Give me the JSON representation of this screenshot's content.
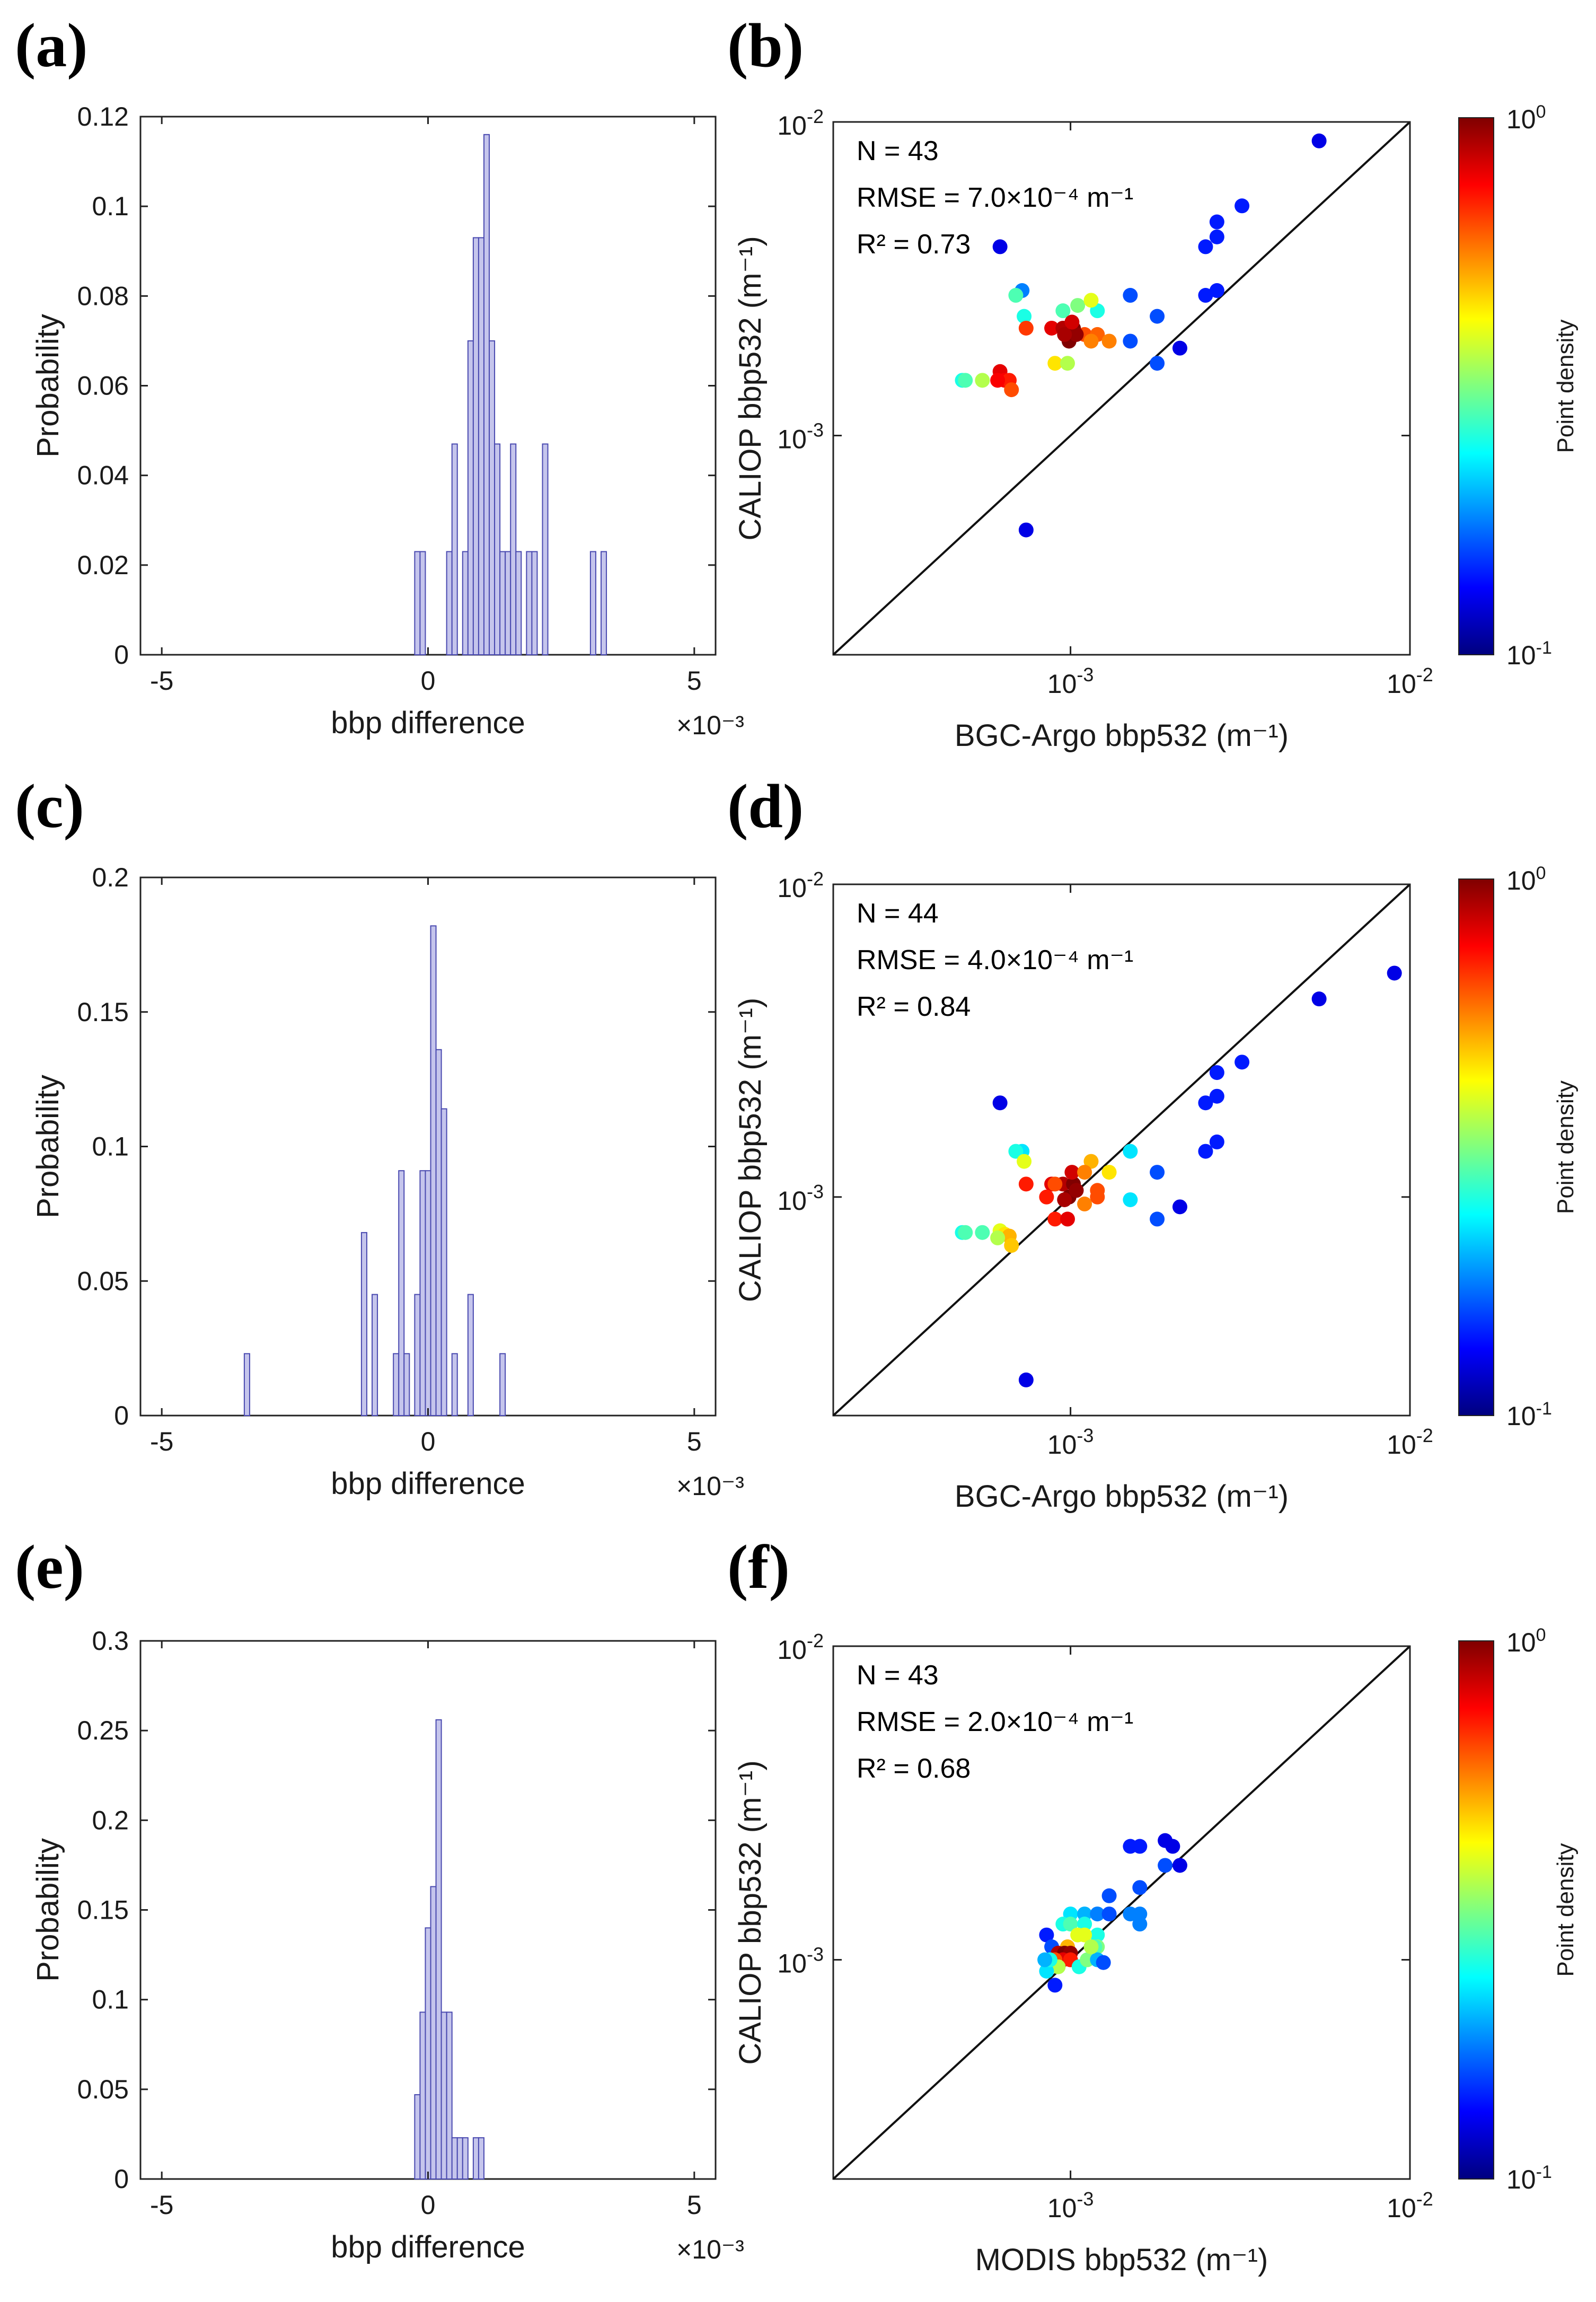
{
  "panels": [
    "(a)",
    "(b)",
    "(c)",
    "(d)",
    "(e)",
    "(f)"
  ],
  "chart_data": [
    {
      "panel": "(a)",
      "type": "bar",
      "xlabel": "bbp difference",
      "xscale_note": "×10⁻³",
      "ylabel": "Probability",
      "xlim": [
        -5.4,
        5.4
      ],
      "ylim": [
        0,
        0.12
      ],
      "xticks": [
        "-5",
        "0",
        "5"
      ],
      "yticks": [
        "0",
        "0.02",
        "0.04",
        "0.06",
        "0.08",
        "0.1",
        "0.12"
      ],
      "bin_width": 0.1,
      "x": [
        -0.2,
        -0.1,
        0.4,
        0.5,
        0.7,
        0.8,
        0.9,
        1.0,
        1.1,
        1.2,
        1.3,
        1.4,
        1.5,
        1.6,
        1.7,
        1.9,
        2.0,
        2.2,
        3.1,
        3.3
      ],
      "values": [
        0.023,
        0.023,
        0.023,
        0.047,
        0.023,
        0.07,
        0.093,
        0.093,
        0.116,
        0.07,
        0.047,
        0.023,
        0.023,
        0.047,
        0.023,
        0.023,
        0.023,
        0.047,
        0.023,
        0.023
      ]
    },
    {
      "panel": "(b)",
      "type": "scatter",
      "xscale": "log",
      "yscale": "log",
      "xlim": [
        0.0002,
        0.01
      ],
      "ylim": [
        0.0002,
        0.01
      ],
      "xlabel": "BGC-Argo bbp532 (m⁻¹)",
      "ylabel": "CALIOP bbp532 (m⁻¹)",
      "xtick_base": [
        "10",
        "10"
      ],
      "xtick_exp": [
        "-3",
        "-2"
      ],
      "ytick_base": [
        "10",
        "10"
      ],
      "ytick_exp": [
        "-3",
        "-2"
      ],
      "annotations": [
        "N = 43",
        "RMSE = 7.0×10⁻⁴ m⁻¹",
        "R² = 0.73"
      ],
      "colorbar": {
        "label": "Point density",
        "range": [
          0.1,
          1
        ],
        "tick_base": [
          "10",
          "10"
        ],
        "tick_exp": [
          "0",
          "-1"
        ]
      },
      "points": [
        [
          0.00062,
          0.004,
          0.1
        ],
        [
          0.00074,
          0.0005,
          0.1
        ],
        [
          0.0054,
          0.0087,
          0.1
        ],
        [
          0.0032,
          0.0054,
          0.15
        ],
        [
          0.0027,
          0.0048,
          0.15
        ],
        [
          0.0027,
          0.0043,
          0.15
        ],
        [
          0.0025,
          0.004,
          0.15
        ],
        [
          0.0027,
          0.0029,
          0.15
        ],
        [
          0.0025,
          0.0028,
          0.15
        ],
        [
          0.0015,
          0.0028,
          0.2
        ],
        [
          0.0018,
          0.0024,
          0.2
        ],
        [
          0.0015,
          0.002,
          0.2
        ],
        [
          0.0021,
          0.0019,
          0.1
        ],
        [
          0.0018,
          0.0017,
          0.2
        ],
        [
          0.00072,
          0.0029,
          0.25
        ],
        [
          0.00069,
          0.0028,
          0.45
        ],
        [
          0.00073,
          0.0024,
          0.4
        ],
        [
          0.00105,
          0.0026,
          0.5
        ],
        [
          0.0012,
          0.0025,
          0.4
        ],
        [
          0.00115,
          0.0027,
          0.6
        ],
        [
          0.00095,
          0.0025,
          0.45
        ],
        [
          0.0011,
          0.0021,
          0.8
        ],
        [
          0.0012,
          0.0021,
          0.78
        ],
        [
          0.0009,
          0.0017,
          0.65
        ],
        [
          0.00098,
          0.0017,
          0.55
        ],
        [
          0.00115,
          0.002,
          0.75
        ],
        [
          0.00088,
          0.0022,
          0.9
        ],
        [
          0.00095,
          0.0022,
          0.95
        ],
        [
          0.00102,
          0.0022,
          1.0
        ],
        [
          0.00099,
          0.002,
          1.0
        ],
        [
          0.00104,
          0.0021,
          0.98
        ],
        [
          0.00096,
          0.0021,
          0.96
        ],
        [
          0.00101,
          0.0023,
          0.92
        ],
        [
          0.00074,
          0.0022,
          0.82
        ],
        [
          0.00048,
          0.0015,
          0.4
        ],
        [
          0.00049,
          0.0015,
          0.45
        ],
        [
          0.00055,
          0.0015,
          0.55
        ],
        [
          0.00062,
          0.0016,
          0.9
        ],
        [
          0.00064,
          0.0015,
          0.88
        ],
        [
          0.00066,
          0.0015,
          0.85
        ],
        [
          0.00067,
          0.0014,
          0.8
        ],
        [
          0.00061,
          0.0015,
          0.88
        ],
        [
          0.0013,
          0.002,
          0.75
        ]
      ]
    },
    {
      "panel": "(c)",
      "type": "bar",
      "xlabel": "bbp difference",
      "xscale_note": "×10⁻³",
      "ylabel": "Probability",
      "xlim": [
        -5.4,
        5.4
      ],
      "ylim": [
        0,
        0.2
      ],
      "xticks": [
        "-5",
        "0",
        "5"
      ],
      "yticks": [
        "0",
        "0.05",
        "0.1",
        "0.15",
        "0.2"
      ],
      "bin_width": 0.1,
      "x": [
        -3.4,
        -1.2,
        -1.0,
        -0.6,
        -0.5,
        -0.4,
        -0.2,
        -0.1,
        0.0,
        0.1,
        0.2,
        0.3,
        0.5,
        0.8,
        1.4
      ],
      "values": [
        0.023,
        0.068,
        0.045,
        0.023,
        0.091,
        0.023,
        0.045,
        0.091,
        0.091,
        0.182,
        0.136,
        0.114,
        0.023,
        0.045,
        0.023
      ]
    },
    {
      "panel": "(d)",
      "type": "scatter",
      "xscale": "log",
      "yscale": "log",
      "xlim": [
        0.0002,
        0.01
      ],
      "ylim": [
        0.0002,
        0.01
      ],
      "xlabel": "BGC-Argo bbp532 (m⁻¹)",
      "ylabel": "CALIOP bbp532 (m⁻¹)",
      "xtick_base": [
        "10",
        "10"
      ],
      "xtick_exp": [
        "-3",
        "-2"
      ],
      "ytick_base": [
        "10",
        "10"
      ],
      "ytick_exp": [
        "-3",
        "-2"
      ],
      "annotations": [
        "N = 44",
        "RMSE = 4.0×10⁻⁴ m⁻¹",
        "R² = 0.84"
      ],
      "colorbar": {
        "label": "Point density",
        "range": [
          0.1,
          1
        ],
        "tick_base": [
          "10",
          "10"
        ],
        "tick_exp": [
          "0",
          "-1"
        ]
      },
      "points": [
        [
          0.00062,
          0.002,
          0.1
        ],
        [
          0.00074,
          0.00026,
          0.1
        ],
        [
          0.009,
          0.0052,
          0.1
        ],
        [
          0.0054,
          0.0043,
          0.1
        ],
        [
          0.0032,
          0.0027,
          0.15
        ],
        [
          0.0027,
          0.0025,
          0.15
        ],
        [
          0.0027,
          0.0021,
          0.15
        ],
        [
          0.0025,
          0.002,
          0.15
        ],
        [
          0.0027,
          0.0015,
          0.15
        ],
        [
          0.0025,
          0.0014,
          0.15
        ],
        [
          0.0015,
          0.0014,
          0.35
        ],
        [
          0.0018,
          0.0012,
          0.2
        ],
        [
          0.0015,
          0.00098,
          0.35
        ],
        [
          0.0021,
          0.00093,
          0.1
        ],
        [
          0.0018,
          0.00085,
          0.2
        ],
        [
          0.00072,
          0.0014,
          0.35
        ],
        [
          0.00069,
          0.0014,
          0.4
        ],
        [
          0.00073,
          0.0013,
          0.6
        ],
        [
          0.00115,
          0.0013,
          0.7
        ],
        [
          0.0013,
          0.0012,
          0.65
        ],
        [
          0.0012,
          0.001,
          0.8
        ],
        [
          0.0012,
          0.00105,
          0.8
        ],
        [
          0.0009,
          0.00085,
          0.85
        ],
        [
          0.00098,
          0.00085,
          0.9
        ],
        [
          0.00088,
          0.0011,
          0.9
        ],
        [
          0.00095,
          0.0011,
          0.95
        ],
        [
          0.00102,
          0.0011,
          1.0
        ],
        [
          0.00099,
          0.001,
          1.0
        ],
        [
          0.00104,
          0.00105,
          0.98
        ],
        [
          0.00096,
          0.00098,
          0.96
        ],
        [
          0.00101,
          0.0012,
          0.92
        ],
        [
          0.00074,
          0.0011,
          0.85
        ],
        [
          0.00048,
          0.00077,
          0.4
        ],
        [
          0.00049,
          0.00077,
          0.45
        ],
        [
          0.00055,
          0.00077,
          0.45
        ],
        [
          0.00062,
          0.00078,
          0.6
        ],
        [
          0.00064,
          0.00076,
          0.65
        ],
        [
          0.00066,
          0.00075,
          0.7
        ],
        [
          0.00067,
          0.0007,
          0.68
        ],
        [
          0.00061,
          0.00074,
          0.55
        ],
        [
          0.0011,
          0.00095,
          0.75
        ],
        [
          0.0011,
          0.0012,
          0.75
        ],
        [
          0.0009,
          0.0011,
          0.8
        ],
        [
          0.00085,
          0.001,
          0.85
        ]
      ]
    },
    {
      "panel": "(e)",
      "type": "bar",
      "xlabel": "bbp difference",
      "xscale_note": "×10⁻³",
      "ylabel": "Probability",
      "xlim": [
        -5.4,
        5.4
      ],
      "ylim": [
        0,
        0.3
      ],
      "xticks": [
        "-5",
        "0",
        "5"
      ],
      "yticks": [
        "0",
        "0.05",
        "0.1",
        "0.15",
        "0.2",
        "0.25",
        "0.3"
      ],
      "bin_width": 0.1,
      "x": [
        -0.2,
        -0.1,
        0.0,
        0.1,
        0.2,
        0.3,
        0.4,
        0.5,
        0.6,
        0.7,
        0.8,
        0.9,
        1.0
      ],
      "values": [
        0.047,
        0.093,
        0.14,
        0.163,
        0.256,
        0.093,
        0.093,
        0.023,
        0.023,
        0.023,
        0.0,
        0.023,
        0.023
      ]
    },
    {
      "panel": "(f)",
      "type": "scatter",
      "xscale": "log",
      "yscale": "log",
      "xlim": [
        0.0002,
        0.01
      ],
      "ylim": [
        0.0002,
        0.01
      ],
      "xlabel": "MODIS bbp532 (m⁻¹)",
      "ylabel": "CALIOP bbp532 (m⁻¹)",
      "xtick_base": [
        "10",
        "10"
      ],
      "xtick_exp": [
        "-3",
        "-2"
      ],
      "ytick_base": [
        "10",
        "10"
      ],
      "ytick_exp": [
        "-3",
        "-2"
      ],
      "annotations": [
        "N = 43",
        "RMSE = 2.0×10⁻⁴ m⁻¹",
        "R² = 0.68"
      ],
      "colorbar": {
        "label": "Point density",
        "range": [
          0.1,
          1
        ],
        "tick_base": [
          "10",
          "10"
        ],
        "tick_exp": [
          "0",
          "-1"
        ]
      },
      "points": [
        [
          0.0019,
          0.0024,
          0.1
        ],
        [
          0.002,
          0.0023,
          0.1
        ],
        [
          0.0015,
          0.0023,
          0.15
        ],
        [
          0.0016,
          0.0023,
          0.15
        ],
        [
          0.0021,
          0.002,
          0.1
        ],
        [
          0.0019,
          0.002,
          0.2
        ],
        [
          0.0013,
          0.0016,
          0.2
        ],
        [
          0.0016,
          0.0017,
          0.2
        ],
        [
          0.0015,
          0.0014,
          0.25
        ],
        [
          0.0016,
          0.0014,
          0.25
        ],
        [
          0.0016,
          0.0013,
          0.25
        ],
        [
          0.001,
          0.0014,
          0.35
        ],
        [
          0.0011,
          0.0014,
          0.3
        ],
        [
          0.0012,
          0.0014,
          0.25
        ],
        [
          0.0013,
          0.0014,
          0.2
        ],
        [
          0.00095,
          0.0013,
          0.4
        ],
        [
          0.001,
          0.0013,
          0.45
        ],
        [
          0.0011,
          0.0013,
          0.4
        ],
        [
          0.00085,
          0.0012,
          0.15
        ],
        [
          0.00088,
          0.0011,
          0.2
        ],
        [
          0.0012,
          0.0012,
          0.4
        ],
        [
          0.0012,
          0.0011,
          0.5
        ],
        [
          0.00105,
          0.0012,
          0.6
        ],
        [
          0.00098,
          0.0011,
          0.7
        ],
        [
          0.00092,
          0.00105,
          0.95
        ],
        [
          0.00096,
          0.00105,
          1.0
        ],
        [
          0.001,
          0.00105,
          0.98
        ],
        [
          0.00095,
          0.001,
          0.9
        ],
        [
          0.001,
          0.001,
          0.85
        ],
        [
          0.0009,
          0.001,
          0.8
        ],
        [
          0.00088,
          0.00096,
          0.5
        ],
        [
          0.00092,
          0.00095,
          0.55
        ],
        [
          0.00106,
          0.00095,
          0.4
        ],
        [
          0.00112,
          0.001,
          0.5
        ],
        [
          0.00118,
          0.0011,
          0.45
        ],
        [
          0.0012,
          0.001,
          0.3
        ],
        [
          0.00125,
          0.00098,
          0.2
        ],
        [
          0.00085,
          0.00092,
          0.35
        ],
        [
          0.0009,
          0.00083,
          0.15
        ],
        [
          0.00087,
          0.001,
          0.4
        ],
        [
          0.0011,
          0.0012,
          0.6
        ],
        [
          0.00115,
          0.0011,
          0.55
        ],
        [
          0.00084,
          0.001,
          0.3
        ]
      ]
    }
  ]
}
